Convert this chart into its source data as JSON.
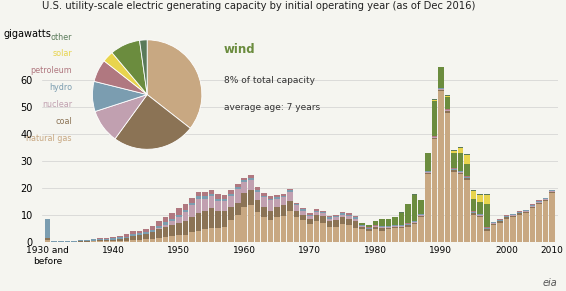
{
  "title": "U.S. utility-scale electric generating capacity by initial operating year (as of Dec 2016)",
  "ylabel": "gigawatts",
  "colors": {
    "natural_gas": "#c8a882",
    "coal": "#8b7355",
    "nuclear": "#c1a0b0",
    "hydro": "#7b9db0",
    "petroleum": "#b07880",
    "solar": "#e8d44d",
    "other": "#5a7a5a",
    "wind": "#6b8c3e"
  },
  "pie_data": {
    "natural_gas": 32,
    "coal": 22,
    "nuclear": 9,
    "hydro": 8,
    "petroleum": 6,
    "solar": 3,
    "wind": 8,
    "other": 2
  },
  "bar_data": {
    "natural_gas": [
      0.5,
      0.0,
      0.0,
      0.0,
      0.0,
      0.0,
      0.0,
      0.1,
      0.1,
      0.1,
      0.2,
      0.2,
      0.2,
      0.5,
      0.5,
      0.8,
      1.0,
      1.5,
      1.8,
      2.0,
      2.5,
      2.5,
      3.5,
      4.0,
      4.5,
      5.0,
      5.0,
      5.5,
      8.0,
      10.0,
      13.0,
      13.5,
      11.0,
      9.0,
      8.0,
      9.0,
      9.5,
      11.5,
      9.0,
      8.0,
      6.5,
      7.5,
      7.0,
      5.5,
      5.5,
      6.5,
      6.0,
      5.0,
      4.5,
      4.0,
      4.5,
      4.0,
      4.5,
      5.0,
      5.0,
      5.5,
      6.5,
      9.0,
      25.0,
      38.0,
      56.0,
      48.0,
      26.0,
      25.0,
      23.0,
      10.0,
      9.0,
      4.0,
      6.0,
      7.0,
      8.5,
      9.0,
      10.0,
      10.5,
      12.5,
      14.0,
      15.0,
      18.0
    ],
    "coal": [
      0.8,
      0.0,
      0.0,
      0.0,
      0.0,
      0.1,
      0.1,
      0.2,
      0.3,
      0.4,
      0.5,
      0.8,
      1.0,
      1.5,
      1.8,
      2.0,
      2.5,
      3.0,
      3.5,
      4.0,
      4.5,
      5.0,
      5.5,
      6.5,
      7.0,
      7.5,
      6.5,
      6.0,
      5.0,
      4.5,
      5.0,
      5.5,
      4.5,
      4.0,
      3.5,
      4.0,
      4.0,
      3.5,
      2.5,
      2.0,
      2.0,
      2.5,
      2.5,
      2.0,
      2.5,
      2.5,
      2.5,
      2.5,
      1.0,
      0.5,
      0.8,
      1.0,
      0.5,
      0.5,
      0.5,
      0.5,
      0.5,
      0.5,
      0.5,
      0.5,
      0.5,
      0.5,
      0.5,
      0.5,
      0.5,
      0.5,
      0.5,
      0.5,
      0.5,
      0.5,
      0.5,
      0.5,
      0.5,
      0.5,
      0.5,
      0.5,
      0.5,
      0.5
    ],
    "nuclear": [
      0.0,
      0.0,
      0.0,
      0.0,
      0.0,
      0.0,
      0.0,
      0.0,
      0.0,
      0.0,
      0.0,
      0.0,
      0.0,
      0.0,
      0.0,
      0.0,
      0.0,
      0.5,
      1.0,
      1.5,
      2.0,
      3.5,
      4.5,
      5.5,
      4.5,
      4.5,
      3.5,
      3.5,
      4.0,
      5.0,
      4.0,
      4.0,
      3.0,
      3.5,
      4.0,
      3.0,
      3.0,
      3.5,
      2.0,
      1.5,
      1.0,
      1.0,
      1.0,
      1.0,
      1.0,
      1.0,
      1.0,
      1.0,
      0.3,
      0.3,
      0.3,
      0.3,
      0.3,
      0.3,
      0.3,
      0.3,
      0.3,
      0.3,
      0.3,
      0.3,
      0.3,
      0.3,
      0.3,
      0.3,
      0.3,
      0.3,
      0.3,
      0.3,
      0.3,
      0.3,
      0.3,
      0.3,
      0.3,
      0.3,
      0.3,
      0.3,
      0.3,
      0.3
    ],
    "hydro": [
      7.0,
      0.1,
      0.1,
      0.2,
      0.3,
      0.4,
      0.5,
      0.5,
      0.6,
      0.6,
      0.6,
      0.6,
      0.6,
      0.8,
      0.8,
      0.8,
      0.8,
      0.8,
      0.8,
      0.8,
      0.8,
      0.8,
      0.8,
      0.8,
      0.8,
      0.8,
      0.8,
      0.8,
      0.8,
      0.8,
      0.8,
      0.8,
      0.8,
      0.6,
      0.5,
      0.5,
      0.5,
      0.5,
      0.5,
      0.5,
      0.5,
      0.5,
      0.5,
      0.5,
      0.5,
      0.5,
      0.5,
      0.5,
      0.3,
      0.3,
      0.3,
      0.3,
      0.3,
      0.3,
      0.3,
      0.3,
      0.3,
      0.3,
      0.3,
      0.3,
      0.3,
      0.3,
      0.3,
      0.3,
      0.3,
      0.3,
      0.3,
      0.3,
      0.3,
      0.3,
      0.3,
      0.3,
      0.3,
      0.3,
      0.3,
      0.3,
      0.3,
      0.3
    ],
    "petroleum": [
      0.0,
      0.0,
      0.0,
      0.0,
      0.0,
      0.0,
      0.0,
      0.0,
      0.2,
      0.3,
      0.4,
      0.5,
      1.0,
      1.0,
      1.0,
      1.0,
      1.5,
      2.0,
      2.0,
      2.5,
      2.5,
      2.0,
      2.0,
      1.5,
      1.5,
      1.5,
      2.0,
      1.5,
      1.5,
      1.0,
      1.0,
      1.0,
      1.0,
      0.8,
      0.8,
      1.0,
      0.8,
      0.5,
      0.5,
      0.5,
      0.5,
      0.5,
      0.5,
      0.5,
      0.5,
      0.5,
      0.5,
      0.5,
      0.2,
      0.2,
      0.2,
      0.2,
      0.2,
      0.2,
      0.2,
      0.2,
      0.2,
      0.2,
      0.2,
      0.2,
      0.2,
      0.2,
      0.2,
      0.2,
      0.2,
      0.2,
      0.2,
      0.2,
      0.2,
      0.2,
      0.2,
      0.2,
      0.2,
      0.2,
      0.2,
      0.2,
      0.2,
      0.2
    ],
    "wind": [
      0.0,
      0.0,
      0.0,
      0.0,
      0.0,
      0.0,
      0.0,
      0.0,
      0.0,
      0.0,
      0.0,
      0.0,
      0.0,
      0.0,
      0.0,
      0.0,
      0.0,
      0.0,
      0.0,
      0.0,
      0.0,
      0.0,
      0.0,
      0.0,
      0.0,
      0.0,
      0.0,
      0.0,
      0.0,
      0.0,
      0.0,
      0.0,
      0.0,
      0.0,
      0.0,
      0.0,
      0.0,
      0.0,
      0.0,
      0.0,
      0.0,
      0.0,
      0.0,
      0.0,
      0.0,
      0.0,
      0.0,
      0.0,
      0.5,
      0.8,
      1.5,
      2.5,
      2.5,
      3.0,
      4.5,
      7.0,
      9.5,
      5.0,
      6.5,
      13.0,
      8.5,
      4.5,
      5.5,
      6.5,
      4.5,
      4.5,
      4.5,
      8.5,
      0.0,
      0.0,
      0.0,
      0.0,
      0.0,
      0.0,
      0.0,
      0.0,
      0.0,
      0.0
    ],
    "solar": [
      0.0,
      0.0,
      0.0,
      0.0,
      0.0,
      0.0,
      0.0,
      0.0,
      0.0,
      0.0,
      0.0,
      0.0,
      0.0,
      0.0,
      0.0,
      0.0,
      0.0,
      0.0,
      0.0,
      0.0,
      0.0,
      0.0,
      0.0,
      0.0,
      0.0,
      0.0,
      0.0,
      0.0,
      0.0,
      0.0,
      0.0,
      0.0,
      0.0,
      0.0,
      0.0,
      0.0,
      0.0,
      0.0,
      0.0,
      0.0,
      0.0,
      0.0,
      0.0,
      0.0,
      0.0,
      0.0,
      0.0,
      0.0,
      0.0,
      0.0,
      0.0,
      0.0,
      0.0,
      0.0,
      0.0,
      0.0,
      0.0,
      0.0,
      0.0,
      0.3,
      0.3,
      0.5,
      1.0,
      2.0,
      3.5,
      3.0,
      2.5,
      3.5,
      0.0,
      0.0,
      0.0,
      0.0,
      0.0,
      0.0,
      0.0,
      0.0,
      0.0,
      0.0
    ],
    "other": [
      0.0,
      0.0,
      0.0,
      0.0,
      0.0,
      0.0,
      0.0,
      0.0,
      0.0,
      0.0,
      0.0,
      0.0,
      0.0,
      0.0,
      0.0,
      0.0,
      0.0,
      0.0,
      0.0,
      0.0,
      0.0,
      0.0,
      0.0,
      0.0,
      0.0,
      0.0,
      0.0,
      0.0,
      0.0,
      0.0,
      0.0,
      0.0,
      0.0,
      0.0,
      0.0,
      0.0,
      0.0,
      0.0,
      0.0,
      0.0,
      0.0,
      0.0,
      0.0,
      0.0,
      0.0,
      0.0,
      0.0,
      0.0,
      0.0,
      0.0,
      0.0,
      0.0,
      0.0,
      0.0,
      0.2,
      0.3,
      0.3,
      0.3,
      0.3,
      0.3,
      0.3,
      0.3,
      0.3,
      0.3,
      0.3,
      0.3,
      0.3,
      0.3,
      0.0,
      0.0,
      0.0,
      0.0,
      0.0,
      0.0,
      0.0,
      0.0,
      0.0,
      0.0
    ]
  },
  "n_years": 78,
  "tick_positions": [
    0,
    10,
    20,
    30,
    40,
    50,
    60,
    70,
    77
  ],
  "tick_labels": [
    "1930 and\nbefore",
    "1940",
    "1950",
    "1960",
    "1970",
    "1980",
    "1990",
    "2000",
    "2010"
  ],
  "ylim": [
    0,
    65
  ],
  "yticks": [
    0,
    10,
    20,
    30,
    40,
    50,
    60
  ],
  "background_color": "#f5f5f0",
  "grid_color": "#d0d0d0",
  "pie_legend": [
    {
      "label": "other",
      "key": "other"
    },
    {
      "label": "solar",
      "key": "solar"
    },
    {
      "label": "petroleum",
      "key": "petroleum"
    },
    {
      "label": "hydro",
      "key": "hydro"
    },
    {
      "label": "nuclear",
      "key": "nuclear"
    },
    {
      "label": "coal",
      "key": "coal"
    },
    {
      "label": "natural gas",
      "key": "natural_gas"
    }
  ]
}
